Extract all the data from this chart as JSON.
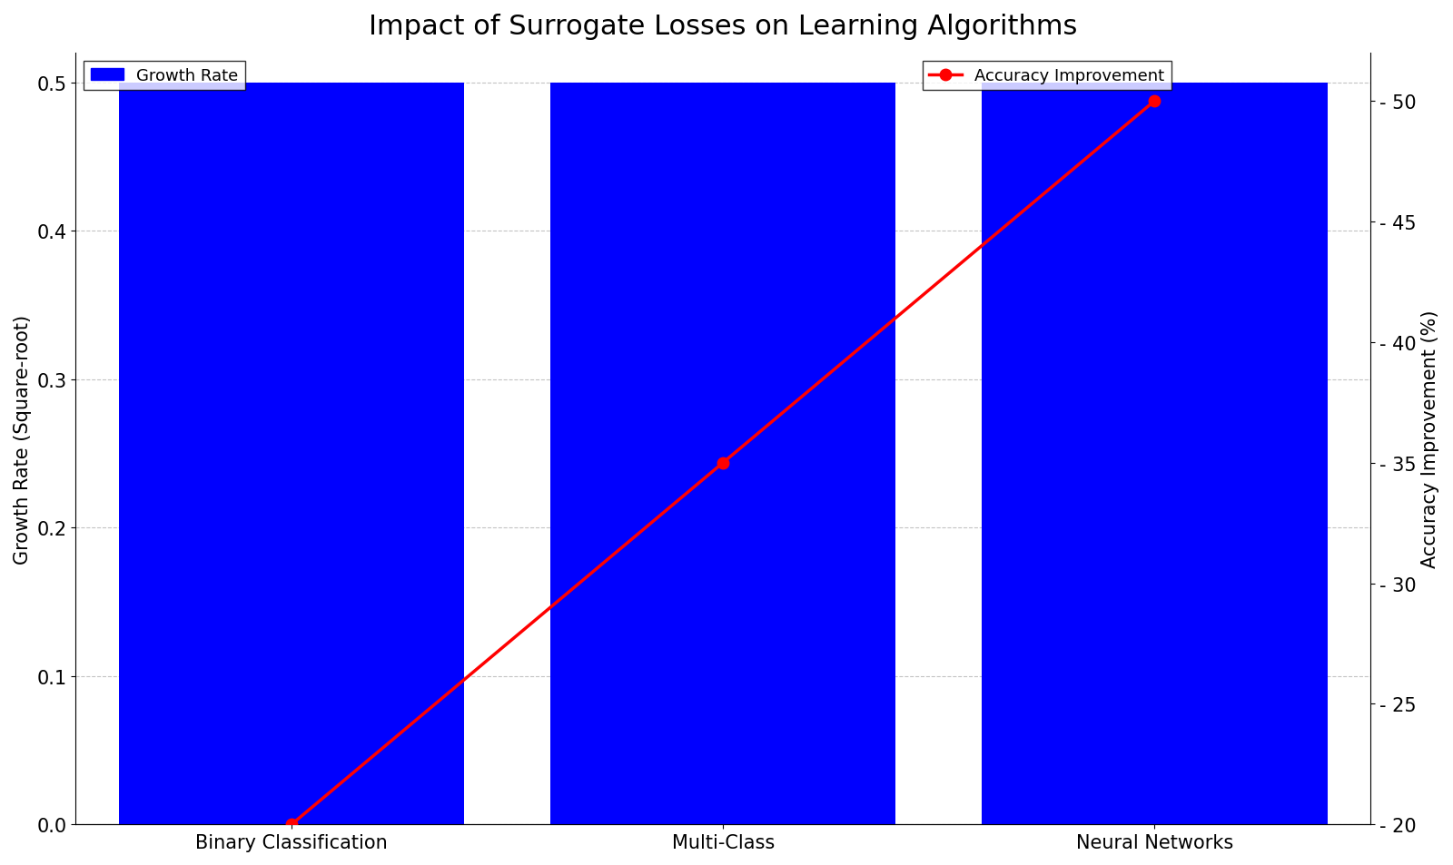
{
  "title": "Impact of Surrogate Losses on Learning Algorithms",
  "categories": [
    "Binary Classification",
    "Multi-Class",
    "Neural Networks"
  ],
  "growth_rate_values": [
    0.5,
    0.5,
    0.5
  ],
  "accuracy_values": [
    20,
    35,
    50
  ],
  "bar_color": "#0000FF",
  "line_color": "red",
  "ylabel_left": "Growth Rate (Square-root)",
  "ylabel_right": "Accuracy Improvement (%)",
  "ylim_left": [
    0,
    0.52
  ],
  "ylim_right": [
    20,
    52
  ],
  "yticks_left": [
    0.0,
    0.1,
    0.2,
    0.3,
    0.4,
    0.5
  ],
  "yticks_right": [
    20,
    25,
    30,
    35,
    40,
    45,
    50
  ],
  "title_fontsize": 22,
  "axis_label_fontsize": 15,
  "tick_fontsize": 15,
  "legend_fontsize": 13,
  "bar_width": 0.8,
  "grid_color": "#AAAAAA",
  "background_color": "#FFFFFF",
  "xlim": [
    -0.5,
    2.5
  ]
}
